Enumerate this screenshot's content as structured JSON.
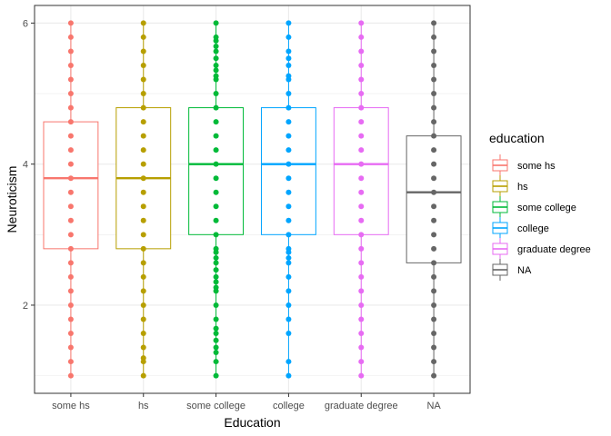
{
  "chart_data": {
    "type": "boxplot",
    "xlabel": "Education",
    "ylabel": "Neuroticism",
    "ylim": [
      0.75,
      6.25
    ],
    "yticks": [
      2,
      4,
      6
    ],
    "grid": true,
    "legend": {
      "title": "education",
      "placement": "right",
      "entries": [
        "some hs",
        "hs",
        "some college",
        "college",
        "graduate degree",
        "NA"
      ]
    },
    "categories": [
      "some hs",
      "hs",
      "some college",
      "college",
      "graduate degree",
      "NA"
    ],
    "colors": [
      "#F8766D",
      "#B79F00",
      "#00BA38",
      "#00A5FF",
      "#E76BF3",
      "#666666"
    ],
    "boxes": [
      {
        "category": "some hs",
        "q1": 2.8,
        "median": 3.8,
        "q3": 4.6,
        "whisker_low": 1.0,
        "whisker_high": 6.0,
        "points": [
          1.0,
          1.2,
          1.4,
          1.6,
          1.8,
          2.0,
          2.2,
          2.4,
          2.6,
          2.8,
          3.0,
          3.2,
          3.4,
          3.6,
          3.8,
          4.0,
          4.2,
          4.4,
          4.6,
          4.8,
          5.0,
          5.2,
          5.4,
          5.6,
          5.8,
          6.0
        ]
      },
      {
        "category": "hs",
        "q1": 2.8,
        "median": 3.8,
        "q3": 4.8,
        "whisker_low": 1.0,
        "whisker_high": 6.0,
        "points": [
          1.0,
          1.2,
          1.25,
          1.4,
          1.6,
          1.8,
          2.0,
          2.2,
          2.4,
          2.6,
          2.8,
          3.0,
          3.2,
          3.4,
          3.6,
          3.8,
          4.0,
          4.2,
          4.4,
          4.6,
          4.8,
          5.0,
          5.2,
          5.4,
          5.6,
          5.8,
          6.0
        ]
      },
      {
        "category": "some college",
        "q1": 3.0,
        "median": 4.0,
        "q3": 4.8,
        "whisker_low": 1.0,
        "whisker_high": 6.0,
        "points": [
          1.0,
          1.2,
          1.33,
          1.4,
          1.5,
          1.6,
          1.67,
          1.8,
          2.0,
          2.2,
          2.25,
          2.33,
          2.4,
          2.5,
          2.6,
          2.67,
          2.75,
          2.8,
          3.0,
          3.2,
          3.4,
          3.6,
          3.8,
          4.0,
          4.2,
          4.4,
          4.6,
          4.8,
          5.0,
          5.2,
          5.25,
          5.33,
          5.4,
          5.5,
          5.6,
          5.67,
          5.75,
          5.8,
          6.0
        ]
      },
      {
        "category": "college",
        "q1": 3.0,
        "median": 4.0,
        "q3": 4.8,
        "whisker_low": 1.0,
        "whisker_high": 6.0,
        "points": [
          1.0,
          1.2,
          1.6,
          1.8,
          2.0,
          2.2,
          2.4,
          2.6,
          2.67,
          2.75,
          2.8,
          3.0,
          3.2,
          3.4,
          3.6,
          3.8,
          4.0,
          4.2,
          4.4,
          4.6,
          4.8,
          5.0,
          5.2,
          5.25,
          5.4,
          5.5,
          5.6,
          5.8,
          6.0
        ]
      },
      {
        "category": "graduate degree",
        "q1": 3.0,
        "median": 4.0,
        "q3": 4.8,
        "whisker_low": 1.0,
        "whisker_high": 6.0,
        "points": [
          1.0,
          1.2,
          1.4,
          1.6,
          1.8,
          2.0,
          2.2,
          2.4,
          2.6,
          2.8,
          3.0,
          3.2,
          3.4,
          3.6,
          3.8,
          4.0,
          4.2,
          4.4,
          4.6,
          4.8,
          5.0,
          5.2,
          5.4,
          5.6,
          5.8,
          6.0
        ]
      },
      {
        "category": "NA",
        "q1": 2.6,
        "median": 3.6,
        "q3": 4.4,
        "whisker_low": 1.0,
        "whisker_high": 6.0,
        "points": [
          1.0,
          1.2,
          1.4,
          1.6,
          1.8,
          2.0,
          2.2,
          2.4,
          2.6,
          2.8,
          3.0,
          3.2,
          3.4,
          3.6,
          3.8,
          4.0,
          4.2,
          4.4,
          4.6,
          4.8,
          5.0,
          5.2,
          5.4,
          5.6,
          5.8,
          6.0
        ]
      }
    ]
  }
}
